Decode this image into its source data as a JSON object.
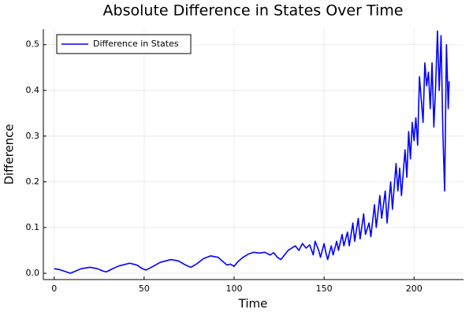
{
  "chart_data": {
    "type": "line",
    "title": "Absolute Difference in States Over Time",
    "xlabel": "Time",
    "ylabel": "Difference",
    "x": [
      0,
      3,
      6,
      9,
      12,
      15,
      20,
      24,
      27,
      29,
      32,
      36,
      42,
      46,
      49,
      51,
      54,
      59,
      65,
      69,
      73,
      76,
      79,
      83,
      87,
      91,
      94,
      96,
      98,
      100,
      102,
      105,
      108,
      111,
      114,
      117,
      120,
      122,
      124,
      126,
      128,
      130,
      132,
      134,
      136,
      138,
      140,
      142,
      144,
      145,
      147,
      148,
      150,
      151,
      152,
      154,
      155,
      157,
      158,
      160,
      161,
      163,
      164,
      166,
      167,
      169,
      170,
      172,
      173,
      175,
      176,
      178,
      179,
      181,
      182,
      184,
      185,
      187,
      188,
      190,
      191,
      192,
      193,
      195,
      196,
      197,
      198,
      199,
      200,
      201,
      202,
      203,
      204,
      205,
      206,
      207,
      208,
      209,
      210,
      211,
      212,
      213,
      214,
      215,
      216,
      217,
      218,
      219,
      219.5
    ],
    "series": [
      {
        "name": "Difference in States",
        "color": "#0000ff",
        "values": [
          0.01,
          0.008,
          0.004,
          0.0,
          0.005,
          0.01,
          0.013,
          0.01,
          0.005,
          0.003,
          0.009,
          0.016,
          0.022,
          0.018,
          0.01,
          0.007,
          0.013,
          0.024,
          0.03,
          0.027,
          0.018,
          0.013,
          0.02,
          0.032,
          0.038,
          0.035,
          0.025,
          0.018,
          0.02,
          0.015,
          0.025,
          0.035,
          0.042,
          0.046,
          0.044,
          0.046,
          0.04,
          0.045,
          0.035,
          0.03,
          0.04,
          0.05,
          0.055,
          0.06,
          0.05,
          0.065,
          0.055,
          0.062,
          0.04,
          0.07,
          0.05,
          0.035,
          0.065,
          0.045,
          0.03,
          0.06,
          0.04,
          0.07,
          0.05,
          0.085,
          0.06,
          0.09,
          0.06,
          0.11,
          0.07,
          0.12,
          0.075,
          0.13,
          0.085,
          0.11,
          0.08,
          0.15,
          0.1,
          0.17,
          0.12,
          0.18,
          0.11,
          0.2,
          0.14,
          0.24,
          0.18,
          0.23,
          0.17,
          0.27,
          0.21,
          0.31,
          0.25,
          0.33,
          0.29,
          0.34,
          0.28,
          0.43,
          0.38,
          0.33,
          0.46,
          0.41,
          0.44,
          0.36,
          0.46,
          0.32,
          0.41,
          0.53,
          0.4,
          0.52,
          0.31,
          0.18,
          0.5,
          0.36,
          0.42
        ]
      }
    ],
    "xlim": [
      -6,
      227.5
    ],
    "xticks": [
      0,
      50,
      100,
      150,
      200
    ],
    "ylim": [
      -0.0138,
      0.534
    ],
    "yticks": [
      {
        "value": 0,
        "label": "0.0"
      },
      0.1,
      0.2,
      0.3,
      0.4,
      0.5
    ],
    "grid": true,
    "legend": "top-left"
  }
}
